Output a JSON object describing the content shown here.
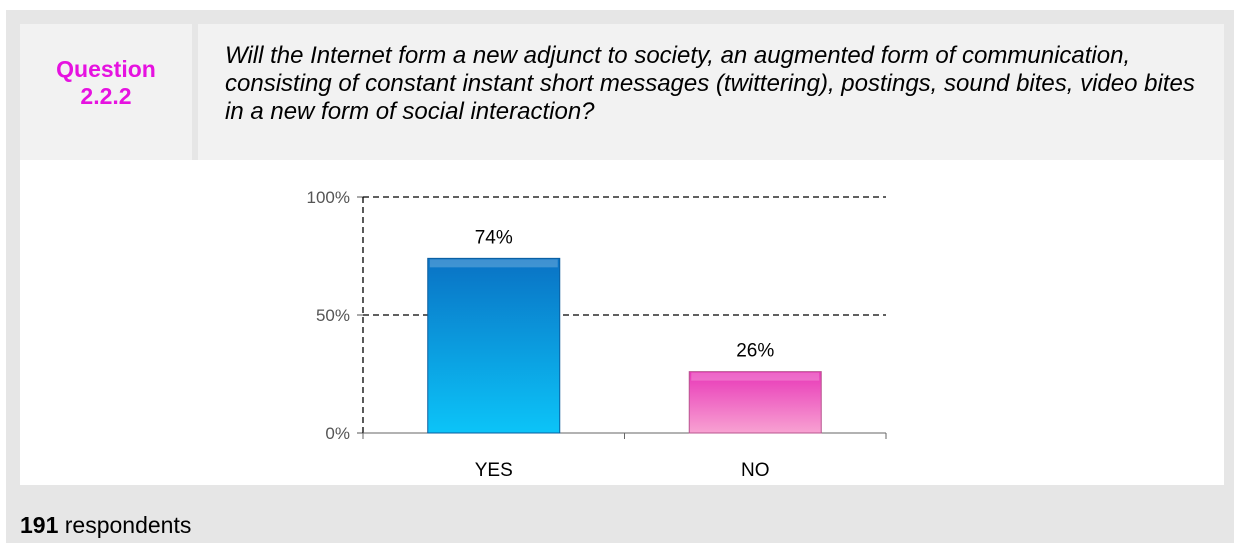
{
  "question": {
    "label_line1": "Question",
    "label_line2": "2.2.2",
    "text": "Will the Internet form a new adjunct to society, an augmented form of communication, consisting of constant instant short messages (twittering), postings, sound bites, video bites in a new form of social interaction?"
  },
  "chart_data": {
    "type": "bar",
    "categories": [
      "YES",
      "NO"
    ],
    "values": [
      74,
      26
    ],
    "data_labels": [
      "74%",
      "26%"
    ],
    "yticks": [
      "0%",
      "50%",
      "100%"
    ],
    "ylim": [
      0,
      100
    ],
    "grid": true,
    "colors": [
      "#0c9be6",
      "#f05fb9"
    ]
  },
  "footer": {
    "count": "191",
    "label": "respondents"
  }
}
